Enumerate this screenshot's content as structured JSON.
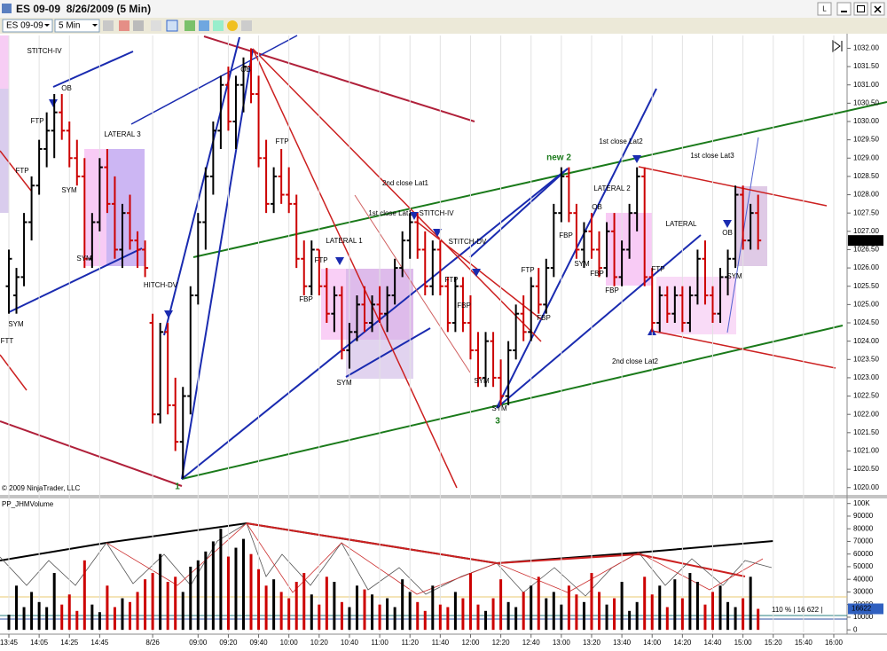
{
  "window": {
    "title": "ES 09-09  8/26/2009 (5 Min)",
    "button": "L"
  },
  "toolbar": {
    "instrument": "ES 09-09",
    "period": "5 Min"
  },
  "chart_data": [
    {
      "type": "ohlc",
      "categories": [
        "13:45",
        null,
        null,
        null,
        "14:05",
        null,
        null,
        null,
        "14:25",
        null,
        null,
        null,
        "14:45",
        null,
        null,
        null,
        null,
        null,
        null,
        "8/26",
        null,
        null,
        null,
        null,
        null,
        "09:00",
        null,
        null,
        null,
        "09:20",
        null,
        null,
        null,
        "09:40",
        null,
        null,
        null,
        "10:00",
        null,
        null,
        null,
        "10:20",
        null,
        null,
        null,
        "10:40",
        null,
        null,
        null,
        "11:00",
        null,
        null,
        null,
        "11:20",
        null,
        null,
        null,
        "11:40",
        null,
        null,
        null,
        "12:00",
        null,
        null,
        null,
        "12:20",
        null,
        null,
        null,
        "12:40",
        null,
        null,
        null,
        "13:00",
        null,
        null,
        null,
        "13:20",
        null,
        null,
        null,
        "13:40",
        null,
        null,
        null,
        "14:00",
        null,
        null,
        null,
        "14:20",
        null,
        null,
        null,
        "14:40",
        null,
        null,
        null,
        "15:00",
        null,
        null,
        null,
        "15:20",
        null,
        null,
        null,
        "15:40",
        null,
        null,
        null,
        "16:00"
      ],
      "open": [
        1025.5,
        1025.25,
        1025.75,
        1027.25,
        1028.25,
        1029.25,
        1029.75,
        1030.25,
        1029.75,
        1029,
        1028.5,
        1026.25,
        1027.25,
        1028.75,
        1027.75,
        1026.5,
        1027.5,
        1026.75,
        1026.5,
        1024.5,
        1022,
        1024.25,
        1022.25,
        1021.25,
        1022.5,
        1025.25,
        1027.25,
        1028.5,
        1029.75,
        1031,
        1030,
        1031,
        1031.5,
        1030.75,
        1029,
        1027.75,
        1028.5,
        1028,
        1027.75,
        1026.25,
        1025.5,
        1026.5,
        1025.5,
        1024.75,
        1025.25,
        1023.75,
        1024.25,
        1025,
        1024.5,
        1025,
        1024.75,
        1025.25,
        1026,
        1026.75,
        1027.25,
        1026.5,
        1025.5,
        1026.5,
        1025.5,
        1024.5,
        1025.5,
        1024.5,
        1023.75,
        1023,
        1024,
        1023,
        1022.5,
        1023.75,
        1024.75,
        1024.25,
        1025.5,
        1025,
        1026,
        1027.5,
        1028.5,
        1027.5,
        1026.5,
        1027,
        1026.5,
        1026,
        1027,
        1025.75,
        1026.5,
        1027.5,
        1028.5,
        1025.75,
        1024.5,
        1025.25,
        1024.75,
        1025.25,
        1024.5,
        1025.25,
        1026.25,
        1025.25,
        1024.75,
        1025.75,
        1026.25,
        1028,
        1026.75,
        1027.5,
        null,
        null,
        null,
        null,
        null,
        null,
        null,
        null,
        null,
        null
      ],
      "high": [
        1026.5,
        1026,
        1027.5,
        1028.5,
        1029.5,
        1030.25,
        1030.75,
        1030.75,
        1030,
        1029.5,
        1029,
        1027.5,
        1029,
        1029.25,
        1028.5,
        1027.75,
        1028,
        1027,
        1026.75,
        1024.75,
        1024.5,
        1024.5,
        1023,
        1022.75,
        1025.5,
        1027.5,
        1028.75,
        1030,
        1031.25,
        1031.5,
        1031.25,
        1031.75,
        1032,
        1031.25,
        1029.5,
        1028.75,
        1029.25,
        1028.75,
        1028,
        1026.75,
        1026.75,
        1026.5,
        1026,
        1025.5,
        1025.5,
        1024.5,
        1025.25,
        1025.5,
        1025.25,
        1025.5,
        1025.5,
        1026.25,
        1027,
        1027.5,
        1027.5,
        1027,
        1026.75,
        1026.75,
        1025.75,
        1025.75,
        1025.75,
        1025.25,
        1024.25,
        1024.25,
        1024.25,
        1023.5,
        1024,
        1025,
        1025.25,
        1025.75,
        1026,
        1026.25,
        1027.75,
        1028.75,
        1028.75,
        1027.75,
        1027.25,
        1027.5,
        1027,
        1027.25,
        1027.5,
        1026.75,
        1027.75,
        1028.75,
        1028.75,
        1026,
        1025.5,
        1025.5,
        1025.5,
        1025.5,
        1025.5,
        1026.5,
        1026.75,
        1025.5,
        1026,
        1026.5,
        1028.25,
        1028.25,
        1027.75,
        1028,
        null,
        null,
        null,
        null,
        null,
        null,
        null,
        null,
        null,
        null
      ],
      "low": [
        1024.75,
        1024.75,
        1025.5,
        1026.75,
        1028,
        1028.75,
        1029,
        1029.5,
        1028.75,
        1028.25,
        1026,
        1026,
        1027,
        1027.5,
        1026.25,
        1026,
        1026.5,
        1026,
        1025.75,
        1021.75,
        1021.75,
        1022,
        1021,
        1020.25,
        1022,
        1025,
        1026.5,
        1028,
        1029.25,
        1029.75,
        1029.25,
        1030.25,
        1030.5,
        1028.75,
        1027.5,
        1027.5,
        1027.75,
        1027.5,
        1026,
        1025.25,
        1025.25,
        1025.25,
        1024.5,
        1024.25,
        1023.5,
        1023.25,
        1024,
        1024.25,
        1024.25,
        1024.5,
        1024.25,
        1025,
        1025.75,
        1026.25,
        1026.25,
        1025.25,
        1025.25,
        1025.25,
        1024.25,
        1024.25,
        1024.25,
        1023.5,
        1022.75,
        1022.75,
        1022.75,
        1022.25,
        1022.25,
        1023.5,
        1024,
        1024,
        1024.75,
        1024.75,
        1025.75,
        1027.25,
        1027.25,
        1026.25,
        1026,
        1026.25,
        1025.75,
        1025.75,
        1025.5,
        1025.5,
        1026.25,
        1027,
        1025.5,
        1024.25,
        1024.25,
        1024.5,
        1024.5,
        1024.25,
        1024.25,
        1025,
        1025,
        1024.5,
        1024.5,
        1025.25,
        1026,
        1026.5,
        1026.5,
        1026.5,
        null,
        null,
        null,
        null,
        null,
        null,
        null,
        null,
        null,
        null
      ],
      "close": [
        1026.25,
        1025.75,
        1027.25,
        1028.25,
        1029.25,
        1029.75,
        1030.25,
        1029.75,
        1029,
        1028.5,
        1026.25,
        1027.25,
        1028.75,
        1027.75,
        1026.5,
        1027.5,
        1026.75,
        1026.5,
        1026,
        1022,
        1024.25,
        1022.25,
        1021.25,
        1022.5,
        1025.25,
        1027.25,
        1028.5,
        1029.75,
        1031,
        1030,
        1031,
        1031.5,
        1030.75,
        1029,
        1027.75,
        1028.5,
        1028,
        1027.75,
        1026.25,
        1025.5,
        1026.5,
        1025.5,
        1024.75,
        1025.25,
        1023.75,
        1024.25,
        1025,
        1024.5,
        1025,
        1024.75,
        1025.25,
        1026,
        1026.75,
        1027.25,
        1026.5,
        1025.5,
        1026.5,
        1025.5,
        1024.5,
        1025.5,
        1024.5,
        1023.75,
        1023,
        1024,
        1023,
        1022.5,
        1023.75,
        1024.75,
        1024.25,
        1025.5,
        1025,
        1026,
        1027.5,
        1028.5,
        1027.5,
        1026.5,
        1027,
        1026.5,
        1026,
        1027,
        1025.75,
        1026.5,
        1027.5,
        1028.5,
        1025.75,
        1024.5,
        1025.25,
        1024.75,
        1025.25,
        1024.5,
        1025.25,
        1026.25,
        1025.25,
        1024.75,
        1025.75,
        1026.25,
        1028,
        1026.75,
        1027.5,
        1026.75,
        null,
        null,
        null,
        null,
        null,
        null,
        null,
        null,
        null,
        null
      ],
      "up_color": "#000000",
      "down_color": "#cc0000",
      "ylim": [
        1019.8,
        1032.35
      ],
      "yticks": [
        {
          "value": 1032,
          "label": "1032.00"
        },
        {
          "value": 1031.5,
          "label": "1031.50"
        },
        {
          "value": 1031,
          "label": "1031.00"
        },
        {
          "value": 1030.5,
          "label": "1030.50"
        },
        {
          "value": 1030,
          "label": "1030.00"
        },
        {
          "value": 1029.5,
          "label": "1029.50"
        },
        {
          "value": 1029,
          "label": "1029.00"
        },
        {
          "value": 1028.5,
          "label": "1028.50"
        },
        {
          "value": 1028,
          "label": "1028.00"
        },
        {
          "value": 1027.5,
          "label": "1027.50"
        },
        {
          "value": 1027,
          "label": "1027.00"
        },
        {
          "value": 1026.5,
          "label": "1026.50"
        },
        {
          "value": 1026,
          "label": "1026.00"
        },
        {
          "value": 1025.5,
          "label": "1025.50"
        },
        {
          "value": 1025,
          "label": "1025.00"
        },
        {
          "value": 1024.5,
          "label": "1024.50"
        },
        {
          "value": 1024,
          "label": "1024.00"
        },
        {
          "value": 1023.5,
          "label": "1023.50"
        },
        {
          "value": 1023,
          "label": "1023.00"
        },
        {
          "value": 1022.5,
          "label": "1022.50"
        },
        {
          "value": 1022,
          "label": "1022.00"
        },
        {
          "value": 1021.5,
          "label": "1021.50"
        },
        {
          "value": 1021,
          "label": "1021.00"
        },
        {
          "value": 1020.5,
          "label": "1020.50"
        },
        {
          "value": 1020,
          "label": "1020.00"
        }
      ],
      "grid": true,
      "annotations": [
        "STITCH-IV",
        "OB",
        "FTP",
        "FTP",
        "LATERAL 3",
        "SYM",
        "SYM",
        "SYM",
        "FTT",
        "HITCH-DV",
        "1",
        "OB",
        "FTP",
        "LATERAL 1",
        "FTP",
        "FBP",
        "SYM",
        "2nd close Lat1",
        "1st close Lat1",
        "STITCH-IV",
        "STITCH-DV",
        "FTP",
        "FBP",
        "FTP",
        "FBP",
        "SYM",
        "SYM",
        "3",
        "new 2",
        "FBP",
        "OB",
        "LATERAL 2",
        "1st close Lat2",
        "FBP",
        "SYM",
        "FBP",
        "2nd close Lat2",
        "LATERAL",
        "FTP",
        "1st close Lat3",
        "OB",
        "SYM"
      ],
      "copyright": "© 2009 NinjaTrader, LLC"
    },
    {
      "type": "bar",
      "title": "PP_JHMVolume",
      "values": [
        12000,
        35000,
        18000,
        30000,
        22000,
        18000,
        45000,
        20000,
        28000,
        15000,
        55000,
        20000,
        14000,
        35000,
        18000,
        25000,
        22000,
        30000,
        40000,
        45000,
        60000,
        38000,
        42000,
        30000,
        50000,
        55000,
        62000,
        70000,
        80000,
        58000,
        65000,
        72000,
        60000,
        48000,
        35000,
        40000,
        30000,
        25000,
        38000,
        45000,
        28000,
        20000,
        42000,
        38000,
        22000,
        18000,
        35000,
        32000,
        28000,
        20000,
        25000,
        18000,
        40000,
        30000,
        22000,
        15000,
        35000,
        20000,
        18000,
        30000,
        25000,
        45000,
        20000,
        15000,
        25000,
        40000,
        22000,
        18000,
        30000,
        35000,
        42000,
        25000,
        30000,
        20000,
        35000,
        28000,
        22000,
        45000,
        30000,
        20000,
        25000,
        38000,
        15000,
        22000,
        42000,
        28000,
        35000,
        18000,
        40000,
        25000,
        45000,
        38000,
        20000,
        30000,
        35000,
        22000,
        18000,
        25000,
        42000,
        16622,
        null,
        null,
        null,
        null,
        null,
        null,
        null,
        null,
        null,
        null
      ],
      "ylim": [
        -2000,
        104000
      ],
      "yticks": [
        {
          "value": 100000,
          "label": "100K"
        },
        90000,
        80000,
        70000,
        60000,
        50000,
        40000,
        30000,
        20000,
        10000,
        0
      ],
      "annotation": "110 % | 16 622 |"
    }
  ]
}
